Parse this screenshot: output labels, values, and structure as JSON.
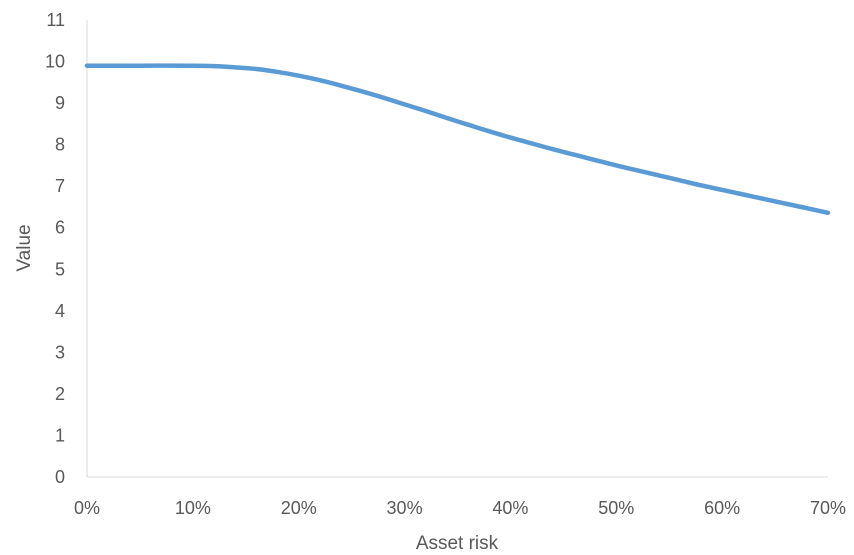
{
  "chart_data": {
    "type": "line",
    "title": "",
    "xlabel": "Asset risk",
    "ylabel": "Value",
    "xlim": [
      0,
      70
    ],
    "ylim": [
      0,
      11
    ],
    "x_ticks": [
      "0%",
      "10%",
      "20%",
      "30%",
      "40%",
      "50%",
      "60%",
      "70%"
    ],
    "y_ticks": [
      "0",
      "1",
      "2",
      "3",
      "4",
      "5",
      "6",
      "7",
      "8",
      "9",
      "10",
      "11"
    ],
    "grid": false,
    "legend": "none",
    "series": [
      {
        "color": "#5b9bd5",
        "x": [
          0,
          5,
          10,
          12,
          14,
          16,
          18,
          20,
          22,
          24,
          26,
          28,
          30,
          32,
          34,
          36,
          38,
          40,
          42,
          44,
          46,
          48,
          50,
          52,
          54,
          56,
          58,
          60,
          62,
          64,
          66,
          68,
          70
        ],
        "y": [
          9.9,
          9.9,
          9.9,
          9.89,
          9.86,
          9.82,
          9.75,
          9.66,
          9.55,
          9.42,
          9.28,
          9.13,
          8.97,
          8.81,
          8.64,
          8.48,
          8.32,
          8.17,
          8.03,
          7.89,
          7.76,
          7.63,
          7.5,
          7.38,
          7.26,
          7.14,
          7.02,
          6.91,
          6.8,
          6.69,
          6.58,
          6.47,
          6.36
        ]
      }
    ]
  }
}
